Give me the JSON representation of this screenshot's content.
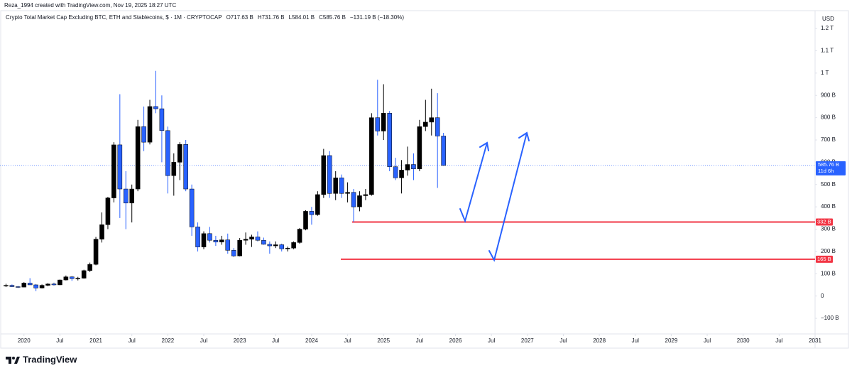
{
  "credit": "Reza_1994 created with TradingView.com, Nov 19, 2025 18:27 UTC",
  "brand": "TradingView",
  "chart_data": {
    "type": "candlestick",
    "title": "Crypto Total Market Cap Excluding BTC, ETH and Stablecoins, $ · 1M · CRYPTOCAP",
    "header_values": [
      "O717.63 B",
      "H731.76 B",
      "L584.01 B",
      "C585.76 B",
      "−131.19 B (−18.30%)"
    ],
    "currency": "USD",
    "up_color": "#000000",
    "down_color": "#2962ff",
    "x": [
      "2019-10",
      "2019-11",
      "2019-12",
      "2020-01",
      "2020-02",
      "2020-03",
      "2020-04",
      "2020-05",
      "2020-06",
      "2020-07",
      "2020-08",
      "2020-09",
      "2020-10",
      "2020-11",
      "2020-12",
      "2021-01",
      "2021-02",
      "2021-03",
      "2021-04",
      "2021-05",
      "2021-06",
      "2021-07",
      "2021-08",
      "2021-09",
      "2021-10",
      "2021-11",
      "2021-12",
      "2022-01",
      "2022-02",
      "2022-03",
      "2022-04",
      "2022-05",
      "2022-06",
      "2022-07",
      "2022-08",
      "2022-09",
      "2022-10",
      "2022-11",
      "2022-12",
      "2023-01",
      "2023-02",
      "2023-03",
      "2023-04",
      "2023-05",
      "2023-06",
      "2023-07",
      "2023-08",
      "2023-09",
      "2023-10",
      "2023-11",
      "2023-12",
      "2024-01",
      "2024-02",
      "2024-03",
      "2024-04",
      "2024-05",
      "2024-06",
      "2024-07",
      "2024-08",
      "2024-09",
      "2024-10",
      "2024-11",
      "2024-12",
      "2025-01",
      "2025-02",
      "2025-03",
      "2025-04",
      "2025-05",
      "2025-06",
      "2025-07",
      "2025-08",
      "2025-09",
      "2025-10",
      "2025-11"
    ],
    "open": [
      45,
      48,
      42,
      40,
      58,
      50,
      36,
      48,
      54,
      50,
      72,
      86,
      78,
      80,
      114,
      142,
      255,
      320,
      440,
      678,
      480,
      417,
      480,
      760,
      690,
      850,
      840,
      742,
      540,
      600,
      680,
      480,
      310,
      220,
      280,
      250,
      242,
      252,
      205,
      180,
      250,
      255,
      265,
      250,
      232,
      225,
      230,
      212,
      215,
      240,
      300,
      380,
      365,
      455,
      630,
      460,
      530,
      460,
      465,
      400,
      450,
      455,
      800,
      740,
      820,
      580,
      530,
      565,
      590,
      570,
      760,
      780,
      800,
      717.63
    ],
    "high": [
      55,
      52,
      45,
      62,
      80,
      54,
      52,
      58,
      60,
      74,
      92,
      90,
      86,
      118,
      150,
      265,
      375,
      445,
      690,
      905,
      560,
      500,
      790,
      850,
      880,
      1010,
      900,
      760,
      640,
      690,
      700,
      500,
      330,
      290,
      310,
      270,
      270,
      280,
      215,
      260,
      285,
      275,
      290,
      262,
      245,
      245,
      235,
      222,
      245,
      305,
      385,
      400,
      470,
      660,
      650,
      560,
      545,
      510,
      480,
      470,
      480,
      820,
      970,
      950,
      830,
      620,
      610,
      670,
      640,
      790,
      880,
      930,
      910,
      731.76
    ],
    "low": [
      40,
      40,
      36,
      39,
      50,
      22,
      34,
      44,
      47,
      49,
      70,
      68,
      70,
      78,
      108,
      138,
      240,
      300,
      420,
      350,
      300,
      330,
      470,
      650,
      680,
      820,
      600,
      460,
      450,
      520,
      470,
      270,
      200,
      210,
      240,
      225,
      230,
      190,
      175,
      178,
      230,
      220,
      245,
      230,
      190,
      215,
      200,
      200,
      210,
      235,
      295,
      320,
      360,
      440,
      440,
      430,
      440,
      420,
      332,
      380,
      430,
      450,
      720,
      700,
      560,
      520,
      460,
      540,
      520,
      560,
      740,
      720,
      485,
      584.01
    ],
    "close": [
      48,
      42,
      40,
      58,
      50,
      36,
      48,
      54,
      50,
      72,
      86,
      78,
      80,
      114,
      142,
      255,
      320,
      440,
      678,
      480,
      417,
      480,
      760,
      690,
      850,
      840,
      742,
      540,
      600,
      680,
      480,
      310,
      220,
      280,
      250,
      242,
      252,
      205,
      180,
      250,
      255,
      265,
      250,
      232,
      225,
      230,
      212,
      215,
      240,
      300,
      380,
      365,
      455,
      630,
      460,
      530,
      460,
      465,
      400,
      450,
      455,
      800,
      740,
      820,
      580,
      530,
      565,
      590,
      570,
      760,
      780,
      800,
      717.63,
      585.76
    ],
    "xlim": [
      "2019-09",
      "2031-01"
    ],
    "xticks": [
      {
        "value": "2020-01",
        "label": "2020"
      },
      {
        "value": "2020-07",
        "label": "Jul"
      },
      {
        "value": "2021-01",
        "label": "2021"
      },
      {
        "value": "2021-07",
        "label": "Jul"
      },
      {
        "value": "2022-01",
        "label": "2022"
      },
      {
        "value": "2022-07",
        "label": "Jul"
      },
      {
        "value": "2023-01",
        "label": "2023"
      },
      {
        "value": "2023-07",
        "label": "Jul"
      },
      {
        "value": "2024-01",
        "label": "2024"
      },
      {
        "value": "2024-07",
        "label": "Jul"
      },
      {
        "value": "2025-01",
        "label": "2025"
      },
      {
        "value": "2025-07",
        "label": "Jul"
      },
      {
        "value": "2026-01",
        "label": "2026"
      },
      {
        "value": "2026-07",
        "label": "Jul"
      },
      {
        "value": "2027-01",
        "label": "2027"
      },
      {
        "value": "2027-07",
        "label": "Jul"
      },
      {
        "value": "2028-01",
        "label": "2028"
      },
      {
        "value": "2028-07",
        "label": "Jul"
      },
      {
        "value": "2029-01",
        "label": "2029"
      },
      {
        "value": "2029-07",
        "label": "Jul"
      },
      {
        "value": "2030-01",
        "label": "2030"
      },
      {
        "value": "2030-07",
        "label": "Jul"
      },
      {
        "value": "2031-01",
        "label": "2031"
      }
    ],
    "ylim": [
      -170,
      1280
    ],
    "yticks": [
      {
        "value": -100,
        "label": "−100 B"
      },
      0,
      {
        "value": 100,
        "label": "100 B"
      },
      {
        "value": 200,
        "label": "200 B"
      },
      {
        "value": 300,
        "label": "300 B"
      },
      {
        "value": 400,
        "label": "400 B"
      },
      {
        "value": 500,
        "label": "500 B"
      },
      {
        "value": 600,
        "label": "600 B"
      },
      {
        "value": 700,
        "label": "700 B"
      },
      {
        "value": 800,
        "label": "800 B"
      },
      {
        "value": 900,
        "label": "900 B"
      },
      {
        "value": 1000,
        "label": "1 T"
      },
      {
        "value": 1100,
        "label": "1.1 T"
      },
      {
        "value": 1200,
        "label": "1.2 T"
      }
    ],
    "levels": [
      {
        "value": 332,
        "label": "332 B",
        "color": "#f23645"
      },
      {
        "value": 165,
        "label": "165 B",
        "color": "#f23645"
      }
    ],
    "last_price": {
      "value": 585.76,
      "label": "585.76 B",
      "countdown": "11d 6h",
      "color": "#2962ff"
    }
  }
}
